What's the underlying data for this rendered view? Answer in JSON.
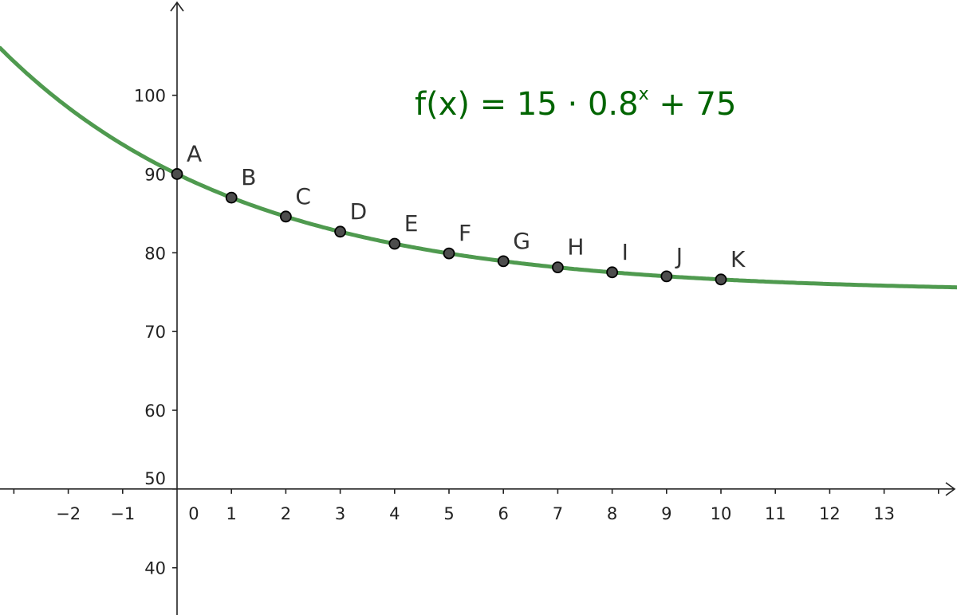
{
  "chart_data": {
    "type": "line",
    "title": "",
    "function_label": {
      "name": "f(x)",
      "equals": "=",
      "base": "15 · 0.8",
      "exponent": "x",
      "tail": "+ 75"
    },
    "function": {
      "a": 15,
      "b": 0.8,
      "c": 75
    },
    "xlim": [
      -3.255,
      14.34
    ],
    "ylim": [
      34.0,
      112.1
    ],
    "axes_cross": {
      "x": 0,
      "y": 50
    },
    "x_ticks": [
      -3,
      -2,
      -1,
      0,
      1,
      2,
      3,
      4,
      5,
      6,
      7,
      8,
      9,
      10,
      11,
      12,
      13,
      14
    ],
    "x_tick_labels": [
      "-2",
      "-1",
      "0",
      "1",
      "2",
      "3",
      "4",
      "5",
      "6",
      "7",
      "8",
      "9",
      "10",
      "11",
      "12",
      "13"
    ],
    "x_tick_label_values": [
      -2,
      -1,
      0,
      1,
      2,
      3,
      4,
      5,
      6,
      7,
      8,
      9,
      10,
      11,
      12,
      13
    ],
    "y_ticks": [
      40,
      50,
      60,
      70,
      80,
      90,
      100
    ],
    "y_tick_labels": [
      "40",
      "50",
      "60",
      "70",
      "80",
      "90",
      "100"
    ],
    "points": [
      {
        "label": "A",
        "x": 0,
        "y": 90
      },
      {
        "label": "B",
        "x": 1,
        "y": 87
      },
      {
        "label": "C",
        "x": 2,
        "y": 84.6
      },
      {
        "label": "D",
        "x": 3,
        "y": 82.68
      },
      {
        "label": "E",
        "x": 4,
        "y": 81.14
      },
      {
        "label": "F",
        "x": 5,
        "y": 79.92
      },
      {
        "label": "G",
        "x": 6,
        "y": 78.93
      },
      {
        "label": "H",
        "x": 7,
        "y": 78.15
      },
      {
        "label": "I",
        "x": 8,
        "y": 77.52
      },
      {
        "label": "J",
        "x": 9,
        "y": 77.01
      },
      {
        "label": "K",
        "x": 10,
        "y": 76.61
      }
    ],
    "grid": false,
    "colors": {
      "curve": "#4f9a4f",
      "formula": "#006400",
      "point_fill": "#4d4d4d",
      "point_stroke": "#000000",
      "axis": "#222222"
    }
  }
}
